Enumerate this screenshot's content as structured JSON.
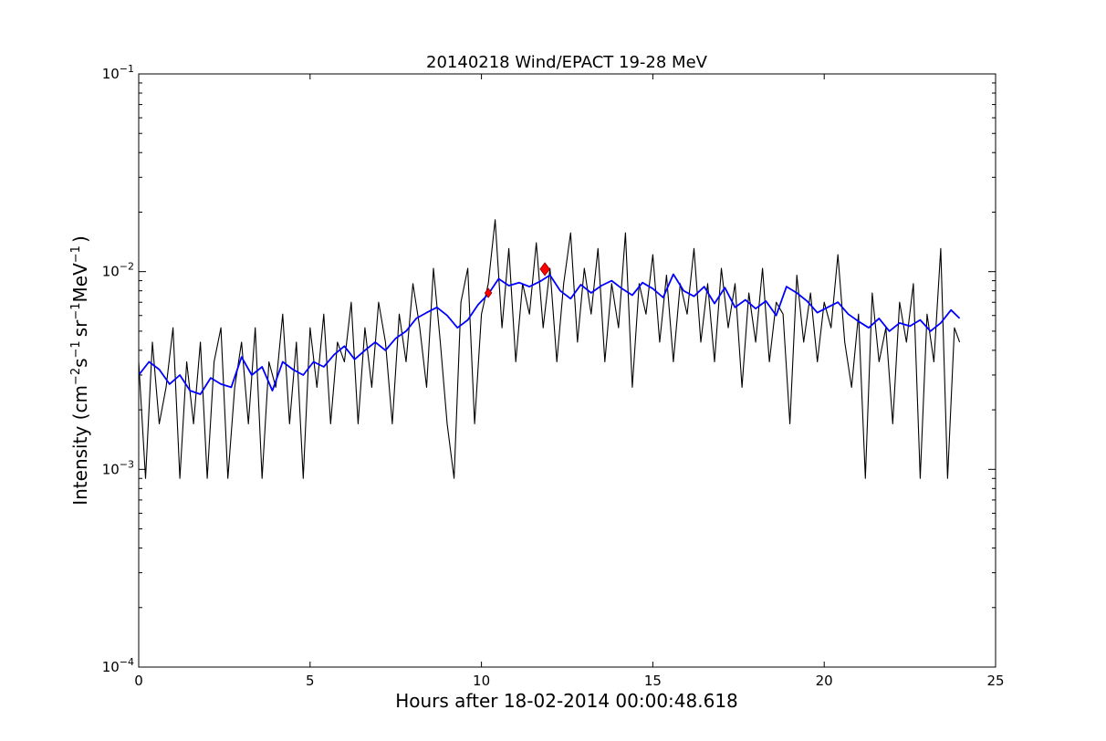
{
  "chart_data": {
    "type": "line",
    "title": "20140218 Wind/EPACT 19-28 MeV",
    "xlabel": "Hours after 18-02-2014 00:00:48.618",
    "ylabel": {
      "prefix": "Intensity (cm",
      "sup1": "−2",
      "s": "s",
      "sup2": "−1",
      "sr": "sr",
      "sup3": "−1",
      "mev": "MeV",
      "sup4": "−1",
      "suffix": ")"
    },
    "xlim": [
      0,
      25
    ],
    "ylim": [
      0.0001,
      0.1
    ],
    "yscale": "log",
    "grid": false,
    "xticks": [
      {
        "value": 0,
        "label": "0"
      },
      {
        "value": 5,
        "label": "5"
      },
      {
        "value": 10,
        "label": "10"
      },
      {
        "value": 15,
        "label": "15"
      },
      {
        "value": 20,
        "label": "20"
      },
      {
        "value": 25,
        "label": "25"
      }
    ],
    "yticks": [
      {
        "value": 0.0001,
        "base": "10",
        "exp": "−4"
      },
      {
        "value": 0.001,
        "base": "10",
        "exp": "−3"
      },
      {
        "value": 0.01,
        "base": "10",
        "exp": "−2"
      },
      {
        "value": 0.1,
        "base": "10",
        "exp": "−1"
      }
    ],
    "series": [
      {
        "style": "raw",
        "color": "#000000",
        "x": [
          0.0,
          0.2,
          0.4,
          0.6,
          0.8,
          1.0,
          1.2,
          1.4,
          1.6,
          1.8,
          2.0,
          2.2,
          2.4,
          2.6,
          2.8,
          3.0,
          3.2,
          3.4,
          3.6,
          3.8,
          4.0,
          4.2,
          4.4,
          4.6,
          4.8,
          5.0,
          5.2,
          5.4,
          5.6,
          5.8,
          6.0,
          6.2,
          6.4,
          6.6,
          6.8,
          7.0,
          7.2,
          7.4,
          7.6,
          7.8,
          8.0,
          8.2,
          8.4,
          8.6,
          8.8,
          9.0,
          9.2,
          9.4,
          9.6,
          9.8,
          10.0,
          10.2,
          10.4,
          10.6,
          10.8,
          11.0,
          11.2,
          11.4,
          11.6,
          11.8,
          12.0,
          12.2,
          12.4,
          12.6,
          12.8,
          13.0,
          13.2,
          13.4,
          13.6,
          13.8,
          14.0,
          14.2,
          14.4,
          14.6,
          14.8,
          15.0,
          15.2,
          15.4,
          15.6,
          15.8,
          16.0,
          16.2,
          16.4,
          16.6,
          16.8,
          17.0,
          17.2,
          17.4,
          17.6,
          17.8,
          18.0,
          18.2,
          18.4,
          18.6,
          18.8,
          19.0,
          19.2,
          19.4,
          19.6,
          19.8,
          20.0,
          20.2,
          20.4,
          20.6,
          20.8,
          21.0,
          21.2,
          21.4,
          21.6,
          21.8,
          22.0,
          22.2,
          22.4,
          22.6,
          22.8,
          23.0,
          23.2,
          23.4,
          23.6,
          23.8,
          23.95
        ],
        "y": [
          0.0035,
          0.0009,
          0.0044,
          0.0017,
          0.0026,
          0.0052,
          0.0009,
          0.0035,
          0.0017,
          0.0044,
          0.0009,
          0.0035,
          0.0052,
          0.0009,
          0.0026,
          0.0044,
          0.0017,
          0.0052,
          0.0009,
          0.0035,
          0.0026,
          0.0061,
          0.0017,
          0.0044,
          0.0009,
          0.0052,
          0.0026,
          0.0061,
          0.0017,
          0.0044,
          0.0035,
          0.007,
          0.0017,
          0.0052,
          0.0026,
          0.007,
          0.0044,
          0.0017,
          0.0061,
          0.0035,
          0.0087,
          0.0052,
          0.0026,
          0.0104,
          0.0044,
          0.0017,
          0.0009,
          0.007,
          0.0104,
          0.0017,
          0.0061,
          0.0087,
          0.0183,
          0.0052,
          0.0131,
          0.0035,
          0.0087,
          0.0061,
          0.014,
          0.0052,
          0.0104,
          0.0035,
          0.0087,
          0.0157,
          0.0044,
          0.0104,
          0.0061,
          0.0131,
          0.0035,
          0.0087,
          0.0052,
          0.0157,
          0.0026,
          0.0087,
          0.0061,
          0.0122,
          0.0044,
          0.0096,
          0.0035,
          0.0087,
          0.0061,
          0.0131,
          0.0044,
          0.0087,
          0.0035,
          0.0104,
          0.0052,
          0.0087,
          0.0026,
          0.0078,
          0.0044,
          0.0104,
          0.0035,
          0.007,
          0.0061,
          0.0017,
          0.0096,
          0.0044,
          0.0078,
          0.0035,
          0.007,
          0.0052,
          0.0122,
          0.0044,
          0.0026,
          0.0061,
          0.0009,
          0.0078,
          0.0035,
          0.0052,
          0.0017,
          0.007,
          0.0044,
          0.0087,
          0.0009,
          0.0061,
          0.0035,
          0.0131,
          0.0009,
          0.0052,
          0.0044
        ]
      },
      {
        "style": "smoothed",
        "color": "#0000ff",
        "x": [
          0.0,
          0.3,
          0.6,
          0.9,
          1.2,
          1.5,
          1.8,
          2.1,
          2.4,
          2.7,
          3.0,
          3.3,
          3.6,
          3.9,
          4.2,
          4.5,
          4.8,
          5.1,
          5.4,
          5.7,
          6.0,
          6.3,
          6.6,
          6.9,
          7.2,
          7.5,
          7.8,
          8.1,
          8.4,
          8.7,
          9.0,
          9.3,
          9.6,
          9.9,
          10.2,
          10.5,
          10.8,
          11.1,
          11.4,
          11.7,
          12.0,
          12.3,
          12.6,
          12.9,
          13.2,
          13.5,
          13.8,
          14.1,
          14.4,
          14.7,
          15.0,
          15.3,
          15.6,
          15.9,
          16.2,
          16.5,
          16.8,
          17.1,
          17.4,
          17.7,
          18.0,
          18.3,
          18.6,
          18.9,
          19.2,
          19.5,
          19.8,
          20.1,
          20.4,
          20.7,
          21.0,
          21.3,
          21.6,
          21.9,
          22.2,
          22.5,
          22.8,
          23.1,
          23.4,
          23.7,
          23.95
        ],
        "y": [
          0.003,
          0.0035,
          0.0032,
          0.0027,
          0.003,
          0.0025,
          0.0024,
          0.0029,
          0.0027,
          0.0026,
          0.0037,
          0.003,
          0.0033,
          0.0025,
          0.0035,
          0.0032,
          0.003,
          0.0035,
          0.0033,
          0.0038,
          0.0042,
          0.0036,
          0.004,
          0.0044,
          0.004,
          0.0046,
          0.005,
          0.0058,
          0.0062,
          0.0066,
          0.006,
          0.0052,
          0.0057,
          0.0068,
          0.0077,
          0.0092,
          0.0085,
          0.0088,
          0.0084,
          0.0089,
          0.0096,
          0.008,
          0.0073,
          0.0086,
          0.0078,
          0.0085,
          0.009,
          0.0082,
          0.0076,
          0.0088,
          0.0082,
          0.0074,
          0.0097,
          0.008,
          0.0075,
          0.0084,
          0.0069,
          0.0083,
          0.0066,
          0.0072,
          0.0065,
          0.0071,
          0.006,
          0.0084,
          0.0078,
          0.0071,
          0.0062,
          0.0066,
          0.007,
          0.0061,
          0.0056,
          0.0052,
          0.0058,
          0.005,
          0.0055,
          0.0053,
          0.0057,
          0.005,
          0.0055,
          0.0064,
          0.0058
        ]
      }
    ],
    "markers": [
      {
        "x": 10.2,
        "y": 0.0078,
        "color": "#ff0000",
        "size": "small"
      },
      {
        "x": 11.85,
        "y": 0.0103,
        "color": "#ff0000",
        "size": "large"
      }
    ]
  }
}
